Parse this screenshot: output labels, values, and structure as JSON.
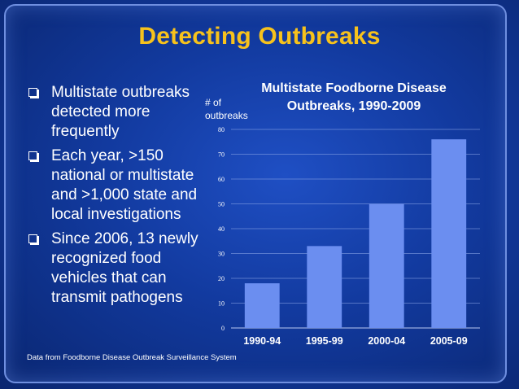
{
  "slide": {
    "title": "Detecting Outbreaks",
    "footnote": "Data from Foodborne Disease Outbreak Surveillance System"
  },
  "bullets": [
    {
      "text": "Multistate outbreaks detected more frequently"
    },
    {
      "text": "Each year, >150 national or multistate and >1,000 state and local investigations"
    },
    {
      "text": "Since 2006, 13 newly recognized food vehicles that can transmit pathogens"
    }
  ],
  "colors": {
    "title": "#f7c21c",
    "bar": "#6b8ef0",
    "text": "#ffffff"
  },
  "chart_data": {
    "type": "bar",
    "title": "Multistate Foodborne Disease Outbreaks, 1990-2009",
    "ylabel": "# of outbreaks",
    "xlabel": "",
    "categories": [
      "1990-94",
      "1995-99",
      "2000-04",
      "2005-09"
    ],
    "values": [
      18,
      33,
      50,
      76
    ],
    "ylim": [
      0,
      80
    ],
    "yticks": [
      0,
      10,
      20,
      30,
      40,
      50,
      60,
      70,
      80
    ],
    "grid": true,
    "legend": "none"
  }
}
